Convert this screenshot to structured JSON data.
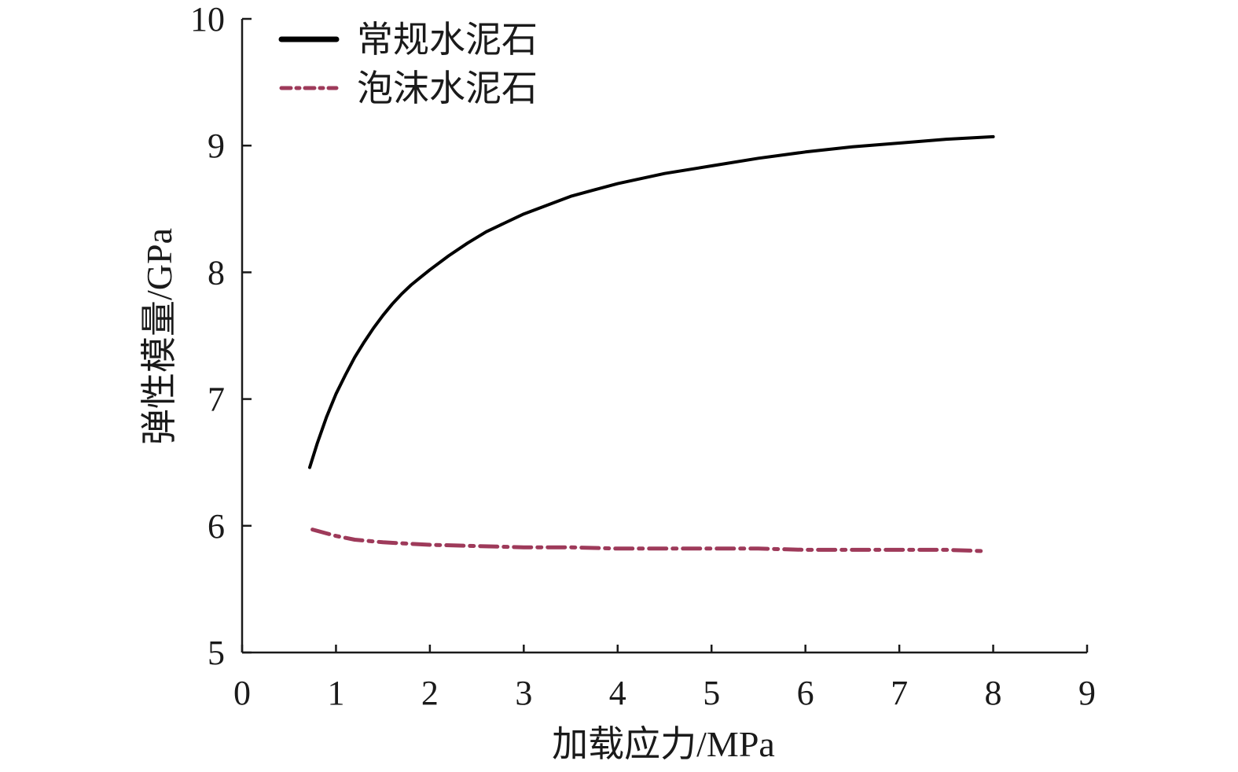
{
  "chart_data": {
    "type": "line",
    "title": "",
    "xlabel": "加载应力/MPa",
    "ylabel": "弹性模量/GPa",
    "xlim": [
      0,
      9
    ],
    "ylim": [
      5,
      10
    ],
    "xticks": [
      0,
      1,
      2,
      3,
      4,
      5,
      6,
      7,
      8,
      9
    ],
    "yticks": [
      5,
      6,
      7,
      8,
      9,
      10
    ],
    "grid": false,
    "legend_position": "top-left",
    "series": [
      {
        "name": "常规水泥石",
        "color": "#000000",
        "style": "solid",
        "x": [
          0.72,
          0.8,
          0.9,
          1.0,
          1.1,
          1.2,
          1.3,
          1.4,
          1.5,
          1.6,
          1.7,
          1.8,
          1.9,
          2.0,
          2.2,
          2.4,
          2.6,
          2.8,
          3.0,
          3.25,
          3.5,
          3.75,
          4.0,
          4.5,
          5.0,
          5.5,
          6.0,
          6.5,
          7.0,
          7.5,
          8.0
        ],
        "y": [
          6.46,
          6.65,
          6.86,
          7.04,
          7.19,
          7.33,
          7.45,
          7.56,
          7.66,
          7.75,
          7.83,
          7.9,
          7.96,
          8.02,
          8.13,
          8.23,
          8.32,
          8.39,
          8.46,
          8.53,
          8.6,
          8.65,
          8.7,
          8.78,
          8.84,
          8.9,
          8.95,
          8.99,
          9.02,
          9.05,
          9.07
        ]
      },
      {
        "name": "泡沫水泥石",
        "color": "#9e3a5a",
        "style": "dash-dot",
        "x": [
          0.75,
          0.9,
          1.0,
          1.2,
          1.5,
          2.0,
          2.5,
          3.0,
          3.5,
          4.0,
          4.5,
          5.0,
          5.5,
          6.0,
          6.5,
          7.0,
          7.5,
          7.9
        ],
        "y": [
          5.97,
          5.94,
          5.92,
          5.89,
          5.87,
          5.85,
          5.84,
          5.83,
          5.83,
          5.82,
          5.82,
          5.82,
          5.82,
          5.81,
          5.81,
          5.81,
          5.81,
          5.8
        ]
      }
    ]
  }
}
